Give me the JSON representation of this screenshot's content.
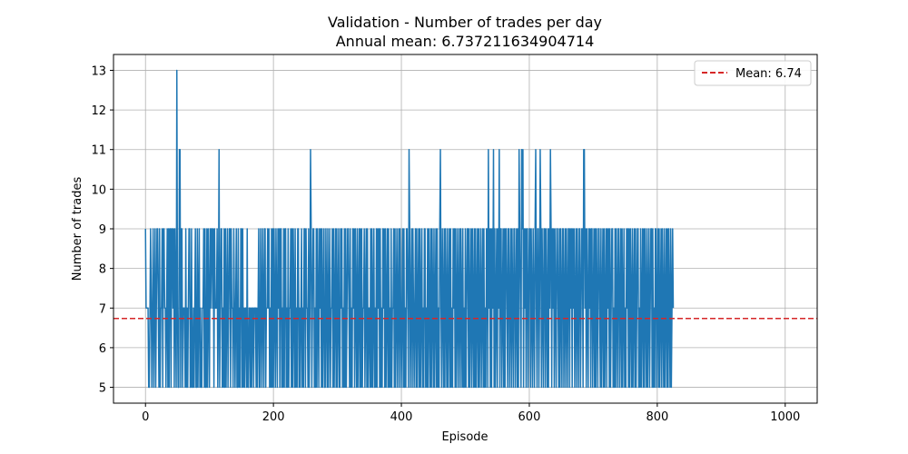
{
  "chart_data": {
    "type": "line",
    "title": "Validation - Number of trades per day",
    "subtitle": "Annual mean: 6.737211634904714",
    "xlabel": "Episode",
    "ylabel": "Number of trades",
    "xlim": [
      -50,
      1050
    ],
    "ylim": [
      4.6,
      13.4
    ],
    "xticks": [
      0,
      200,
      400,
      600,
      800,
      1000
    ],
    "yticks": [
      5,
      6,
      7,
      8,
      9,
      10,
      11,
      12,
      13
    ],
    "grid": true,
    "legend_position": "top-right",
    "series": [
      {
        "color": "#1f77b4",
        "x_start": 0,
        "x_step": 1,
        "values": [
          9,
          7,
          7,
          7,
          7,
          5,
          5,
          7,
          9,
          7,
          5,
          7,
          9,
          5,
          7,
          9,
          5,
          7,
          9,
          9,
          7,
          5,
          9,
          5,
          7,
          7,
          9,
          5,
          9,
          9,
          7,
          7,
          5,
          7,
          9,
          5,
          9,
          5,
          9,
          9,
          5,
          9,
          9,
          7,
          9,
          5,
          9,
          7,
          5,
          13,
          7,
          5,
          5,
          11,
          11,
          5,
          9,
          9,
          5,
          7,
          7,
          7,
          5,
          9,
          5,
          7,
          5,
          7,
          9,
          9,
          5,
          5,
          9,
          5,
          5,
          7,
          5,
          7,
          9,
          5,
          5,
          9,
          5,
          7,
          9,
          5,
          7,
          5,
          5,
          7,
          7,
          9,
          5,
          9,
          5,
          5,
          9,
          5,
          9,
          7,
          5,
          9,
          7,
          9,
          9,
          7,
          9,
          5,
          9,
          7,
          7,
          7,
          9,
          5,
          7,
          11,
          5,
          7,
          9,
          9,
          5,
          7,
          5,
          9,
          5,
          9,
          5,
          7,
          9,
          5,
          7,
          9,
          9,
          5,
          9,
          7,
          7,
          5,
          9,
          7,
          5,
          7,
          9,
          5,
          5,
          9,
          5,
          7,
          5,
          9,
          9,
          5,
          9,
          5,
          7,
          5,
          7,
          7,
          5,
          9,
          5,
          5,
          7,
          7,
          5,
          7,
          5,
          7,
          7,
          5,
          7,
          7,
          7,
          5,
          7,
          5,
          7,
          9,
          5,
          5,
          9,
          7,
          5,
          9,
          7,
          5,
          9,
          9,
          5,
          7,
          7,
          9,
          7,
          9,
          5,
          7,
          5,
          9,
          5,
          9,
          5,
          9,
          7,
          5,
          9,
          7,
          5,
          9,
          7,
          9,
          5,
          9,
          9,
          5,
          7,
          5,
          9,
          5,
          9,
          9,
          5,
          7,
          5,
          9,
          5,
          7,
          7,
          9,
          5,
          9,
          5,
          9,
          7,
          5,
          9,
          5,
          7,
          5,
          9,
          9,
          5,
          7,
          5,
          7,
          9,
          5,
          7,
          5,
          9,
          9,
          5,
          9,
          7,
          7,
          5,
          9,
          5,
          7,
          11,
          9,
          5,
          7,
          9,
          9,
          5,
          7,
          5,
          9,
          5,
          9,
          7,
          5,
          9,
          7,
          9,
          5,
          9,
          5,
          7,
          9,
          5,
          5,
          9,
          7,
          5,
          9,
          5,
          7,
          9,
          5,
          7,
          7,
          9,
          5,
          9,
          5,
          7,
          9,
          5,
          9,
          5,
          7,
          9,
          5,
          5,
          9,
          7,
          9,
          5,
          7,
          5,
          9,
          5,
          9,
          5,
          7,
          9,
          9,
          7,
          5,
          9,
          5,
          7,
          5,
          9,
          7,
          9,
          5,
          9,
          7,
          5,
          9,
          5,
          7,
          9,
          5,
          9,
          5,
          9,
          5,
          7,
          7,
          9,
          5,
          7,
          9,
          5,
          9,
          5,
          7,
          7,
          5,
          9,
          5,
          9,
          5,
          7,
          9,
          5,
          7,
          5,
          9,
          5,
          9,
          7,
          9,
          5,
          9,
          5,
          7,
          5,
          9,
          7,
          9,
          5,
          9,
          5,
          7,
          9,
          5,
          9,
          5,
          7,
          5,
          9,
          5,
          7,
          7,
          9,
          5,
          9,
          5,
          7,
          9,
          5,
          7,
          9,
          5,
          9,
          7,
          5,
          7,
          9,
          5,
          9,
          5,
          7,
          5,
          9,
          9,
          7,
          5,
          11,
          9,
          5,
          7,
          9,
          5,
          9,
          7,
          5,
          7,
          9,
          5,
          9,
          5,
          7,
          9,
          5,
          9,
          5,
          7,
          9,
          5,
          7,
          5,
          9,
          9,
          5,
          7,
          5,
          9,
          5,
          9,
          7,
          5,
          9,
          5,
          9,
          7,
          5,
          9,
          5,
          7,
          9,
          5,
          9,
          5,
          7,
          5,
          9,
          11,
          7,
          5,
          9,
          7,
          5,
          9,
          5,
          9,
          7,
          5,
          9,
          5,
          7,
          9,
          5,
          9,
          5,
          7,
          5,
          9,
          7,
          9,
          5,
          9,
          5,
          7,
          9,
          5,
          7,
          9,
          5,
          9,
          7,
          5,
          9,
          5,
          7,
          5,
          9,
          5,
          7,
          9,
          9,
          5,
          9,
          5,
          7,
          9,
          5,
          9,
          7,
          5,
          9,
          5,
          9,
          5,
          7,
          9,
          5,
          9,
          5,
          7,
          9,
          5,
          7,
          9,
          5,
          9,
          5,
          7,
          5,
          9,
          9,
          5,
          11,
          7,
          9,
          5,
          9,
          5,
          9,
          7,
          11,
          5,
          9,
          5,
          7,
          9,
          5,
          9,
          7,
          11,
          5,
          9,
          9,
          5,
          7,
          9,
          5,
          9,
          5,
          9,
          9,
          7,
          5,
          9,
          9,
          5,
          7,
          9,
          5,
          9,
          7,
          5,
          9,
          9,
          5,
          7,
          9,
          5,
          9,
          5,
          11,
          9,
          7,
          5,
          11,
          9,
          11,
          5,
          9,
          7,
          9,
          5,
          9,
          9,
          5,
          7,
          9,
          9,
          5,
          9,
          7,
          5,
          9,
          7,
          5,
          9,
          11,
          7,
          5,
          9,
          9,
          5,
          7,
          11,
          9,
          5,
          9,
          7,
          5,
          9,
          9,
          5,
          9,
          7,
          5,
          9,
          5,
          9,
          7,
          11,
          9,
          5,
          9,
          7,
          9,
          5,
          9,
          7,
          5,
          9,
          9,
          7,
          5,
          9,
          5,
          9,
          7,
          5,
          9,
          9,
          5,
          7,
          9,
          5,
          9,
          7,
          5,
          9,
          9,
          5,
          9,
          7,
          9,
          5,
          9,
          7,
          9,
          5,
          7,
          9,
          5,
          9,
          7,
          5,
          9,
          9,
          5,
          7,
          9,
          9,
          5,
          11,
          11,
          7,
          9,
          5,
          9,
          7,
          5,
          9,
          7,
          9,
          5,
          9,
          9,
          5,
          7,
          9,
          5,
          9,
          5,
          9,
          7,
          5,
          9,
          9,
          7,
          5,
          9,
          5,
          7,
          9,
          5,
          9,
          5,
          7,
          9,
          5,
          9,
          7,
          9,
          5,
          9,
          5,
          7,
          9,
          9,
          5,
          7,
          5,
          9,
          5,
          9,
          7,
          5,
          9,
          9,
          5,
          7,
          9,
          5,
          9,
          5,
          7,
          9,
          5,
          7,
          5,
          9,
          7,
          9,
          5,
          9,
          5,
          9,
          7,
          5,
          9,
          5,
          7,
          9,
          5,
          9,
          5,
          7,
          9,
          9,
          5,
          7,
          5,
          9,
          5,
          7,
          9,
          5,
          9,
          5,
          9,
          7,
          5,
          9,
          5,
          7,
          9,
          5,
          7,
          9,
          9,
          5,
          9,
          5,
          7,
          5,
          9,
          9,
          5,
          7,
          9,
          5,
          9,
          5,
          7,
          9,
          5,
          9,
          7,
          5,
          9,
          5,
          7,
          9,
          5,
          9,
          5,
          9,
          7,
          5,
          9,
          5,
          7,
          9,
          7
        ]
      }
    ],
    "reference_lines": [
      {
        "y": 6.737211634904714,
        "color": "#d62728",
        "style": "dashed",
        "label": "Mean: 6.74"
      }
    ]
  }
}
